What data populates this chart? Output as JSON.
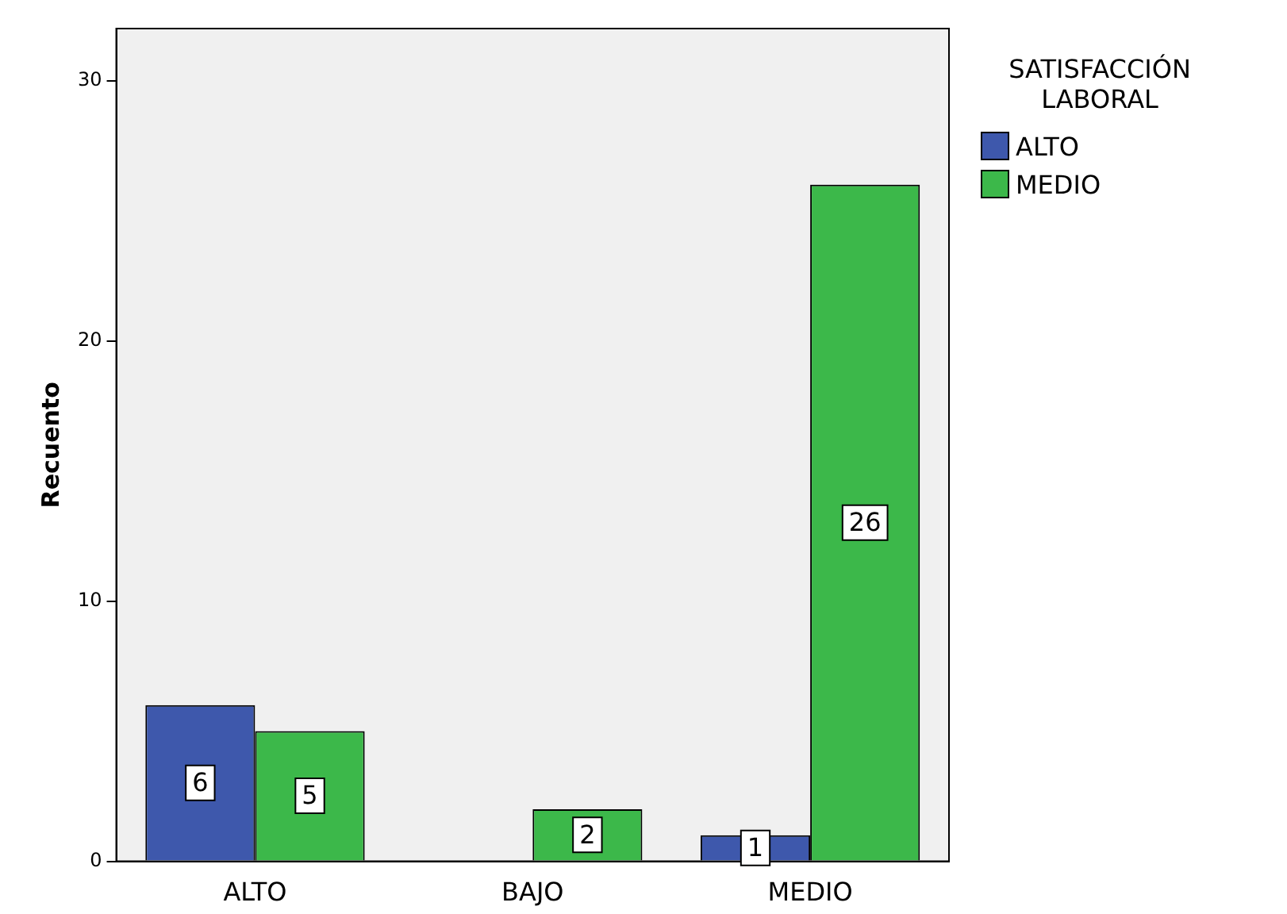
{
  "chart_data": {
    "type": "bar",
    "ylabel": "Recuento",
    "legend_title": "SATISFACCIÓN LABORAL",
    "categories": [
      "ALTO",
      "BAJO",
      "MEDIO"
    ],
    "series": [
      {
        "name": "ALTO",
        "color": "#3e58ac",
        "values": [
          6,
          null,
          1
        ]
      },
      {
        "name": "MEDIO",
        "color": "#3cb84a",
        "values": [
          5,
          2,
          26
        ]
      }
    ],
    "ylim": [
      0,
      32
    ],
    "yticks": [
      0,
      10,
      20,
      30
    ],
    "grid": false,
    "legend": "top right",
    "data_labels": true
  }
}
